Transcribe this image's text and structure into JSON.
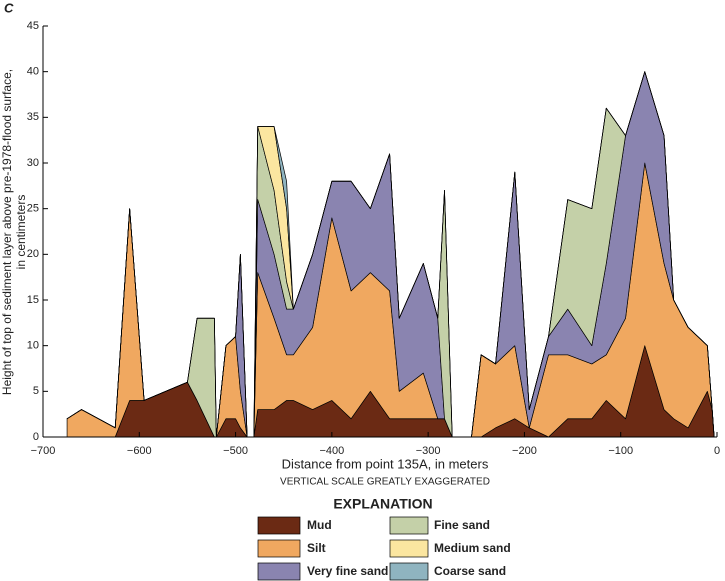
{
  "chart_data": {
    "type": "area",
    "stacked": true,
    "title": "C",
    "ylabel_lines": [
      "Height of top of sediment layer above pre-1978-flood surface,",
      "in centimeters"
    ],
    "xlabel": "Distance from point 135A, in meters",
    "note": "VERTICAL SCALE GREATLY EXAGGERATED",
    "legend_title": "EXPLANATION",
    "xlim": [
      -700,
      0
    ],
    "ylim": [
      0,
      45
    ],
    "xticks": [
      {
        "value": -700,
        "label": "−700"
      },
      {
        "value": -600,
        "label": "−600"
      },
      {
        "value": -500,
        "label": "−500"
      },
      {
        "value": -400,
        "label": "−400"
      },
      {
        "value": -300,
        "label": "−300"
      },
      {
        "value": -200,
        "label": "−200"
      },
      {
        "value": -100,
        "label": "−100"
      },
      0
    ],
    "yticks": [
      0,
      5,
      10,
      15,
      20,
      25,
      30,
      35,
      40,
      45
    ],
    "x": [
      -675,
      -660,
      -625,
      -610,
      -595,
      -550,
      -540,
      -522,
      -520,
      -510,
      -500,
      -495,
      -488,
      -485,
      -481,
      -477,
      -460,
      -447,
      -440,
      -420,
      -400,
      -380,
      -360,
      -340,
      -330,
      -305,
      -290,
      -283,
      -275,
      -265,
      -255,
      -245,
      -230,
      -210,
      -195,
      -175,
      -155,
      -130,
      -115,
      -95,
      -75,
      -55,
      -45,
      -30,
      -10,
      -5,
      -3
    ],
    "series": [
      {
        "name": "Mud",
        "color": "#6b2a14",
        "values": [
          0,
          0,
          0,
          4,
          4,
          6,
          4,
          0,
          0,
          2,
          2,
          1,
          0,
          null,
          0,
          3,
          3,
          4,
          4,
          3,
          4,
          2,
          5,
          2,
          2,
          2,
          2,
          2,
          0,
          null,
          0,
          0,
          1,
          2,
          1,
          0,
          2,
          2,
          4,
          2,
          10,
          3,
          2,
          1,
          5,
          3,
          0
        ]
      },
      {
        "name": "Silt",
        "color": "#f0a860",
        "values": [
          2,
          3,
          1,
          21,
          0,
          0,
          0,
          0,
          0,
          8,
          9,
          4,
          0,
          null,
          0,
          15,
          10,
          5,
          5,
          9,
          20,
          14,
          13,
          14,
          3,
          5,
          0,
          0,
          0,
          null,
          0,
          9,
          7,
          8,
          0,
          9,
          7,
          6,
          5,
          11,
          20,
          16,
          13,
          11,
          5,
          0,
          0
        ]
      },
      {
        "name": "Very fine sand",
        "color": "#8a84b0",
        "values": [
          0,
          0,
          0,
          0,
          0,
          0,
          0,
          0,
          0,
          0,
          0,
          15,
          0,
          null,
          0,
          8,
          7,
          5,
          5,
          8,
          4,
          12,
          7,
          15,
          8,
          12,
          11,
          0,
          0,
          null,
          0,
          0,
          0,
          19,
          2,
          2,
          5,
          2,
          10,
          20,
          10,
          14,
          0,
          0,
          0,
          0,
          0
        ]
      },
      {
        "name": "Fine sand",
        "color": "#c4d0a8",
        "values": [
          0,
          0,
          0,
          0,
          0,
          0,
          9,
          13,
          0,
          0,
          0,
          0,
          0,
          null,
          0,
          8,
          7,
          3,
          0,
          0,
          0,
          0,
          0,
          0,
          0,
          0,
          0,
          25,
          0,
          null,
          0,
          0,
          0,
          0,
          0,
          0,
          12,
          15,
          17,
          0,
          0,
          0,
          0,
          0,
          0,
          0,
          0
        ]
      },
      {
        "name": "Medium sand",
        "color": "#fbe6a0",
        "values": [
          0,
          0,
          0,
          0,
          0,
          0,
          0,
          0,
          0,
          0,
          0,
          0,
          0,
          null,
          0,
          0,
          7,
          8,
          0,
          0,
          0,
          0,
          0,
          0,
          0,
          0,
          0,
          0,
          0,
          null,
          0,
          0,
          0,
          0,
          0,
          0,
          0,
          0,
          0,
          0,
          0,
          0,
          0,
          0,
          0,
          0,
          0
        ]
      },
      {
        "name": "Coarse sand",
        "color": "#8fb4c0",
        "values": [
          0,
          0,
          0,
          0,
          0,
          0,
          0,
          0,
          0,
          0,
          0,
          0,
          0,
          null,
          0,
          0,
          0,
          3,
          0,
          0,
          0,
          0,
          0,
          0,
          0,
          0,
          0,
          0,
          0,
          null,
          0,
          0,
          0,
          0,
          0,
          0,
          0,
          0,
          0,
          0,
          0,
          0,
          0,
          0,
          0,
          0,
          0
        ]
      }
    ]
  }
}
